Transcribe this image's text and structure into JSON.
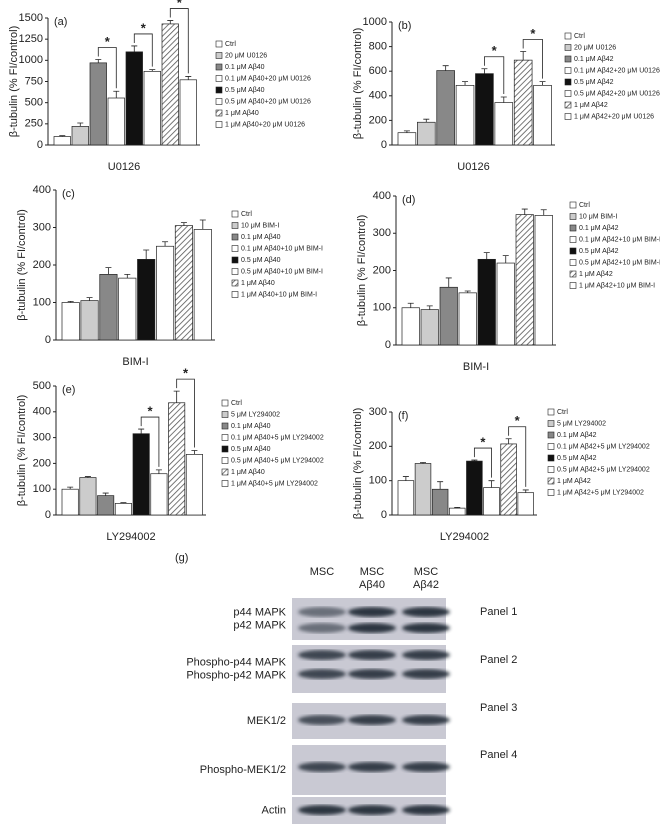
{
  "chart_data": [
    {
      "type": "bar",
      "label": "(a)",
      "ylabel": "β-tubulin (% FI/control)",
      "categories": [
        "U0126"
      ],
      "ylim": [
        0,
        1500
      ],
      "yticks": [
        0,
        250,
        500,
        750,
        1000,
        1250,
        1500
      ],
      "series": [
        {
          "name": "Ctrl",
          "color": "#ffffff",
          "values": [
            100
          ],
          "errors": [
            10
          ]
        },
        {
          "name": "20 μM U0126",
          "color": "#cccccc",
          "values": [
            220
          ],
          "errors": [
            40
          ]
        },
        {
          "name": "0.1 μM Aβ40",
          "color": "#888888",
          "values": [
            970
          ],
          "errors": [
            40
          ]
        },
        {
          "name": "0.1 μM Aβ40+20 μM U0126",
          "color": "#ffffff",
          "values": [
            555
          ],
          "errors": [
            80
          ]
        },
        {
          "name": "0.5 μM Aβ40",
          "color": "#111111",
          "values": [
            1100
          ],
          "errors": [
            70
          ]
        },
        {
          "name": "0.5 μM Aβ40+20 μM U0126",
          "color": "#ffffff",
          "values": [
            870
          ],
          "errors": [
            20
          ]
        },
        {
          "name": "1 μM Aβ40",
          "color": "#ffffff",
          "pattern": "hatch",
          "values": [
            1430
          ],
          "errors": [
            40
          ]
        },
        {
          "name": "1 μM Aβ40+20 μM U0126",
          "color": "#ffffff",
          "values": [
            770
          ],
          "errors": [
            40
          ]
        }
      ],
      "significance": [
        {
          "label": "*",
          "pair": [
            2,
            3
          ]
        },
        {
          "label": "*",
          "pair": [
            4,
            5
          ]
        },
        {
          "label": "*",
          "pair": [
            6,
            7
          ]
        }
      ]
    },
    {
      "type": "bar",
      "label": "(b)",
      "ylabel": "β-tubulin (% FI/control)",
      "categories": [
        "U0126"
      ],
      "ylim": [
        0,
        1000
      ],
      "yticks": [
        0,
        200,
        400,
        600,
        800,
        1000
      ],
      "series": [
        {
          "name": "Ctrl",
          "color": "#ffffff",
          "values": [
            100
          ],
          "errors": [
            15
          ]
        },
        {
          "name": "20 μM U0126",
          "color": "#cccccc",
          "values": [
            185
          ],
          "errors": [
            25
          ]
        },
        {
          "name": "0.1 μM Aβ42",
          "color": "#888888",
          "values": [
            605
          ],
          "errors": [
            40
          ]
        },
        {
          "name": "0.1 μM Aβ42+20 μM U0126",
          "color": "#ffffff",
          "values": [
            485
          ],
          "errors": [
            30
          ]
        },
        {
          "name": "0.5 μM Aβ42",
          "color": "#111111",
          "values": [
            580
          ],
          "errors": [
            40
          ]
        },
        {
          "name": "0.5 μM Aβ42+20 μM U0126",
          "color": "#ffffff",
          "values": [
            345
          ],
          "errors": [
            45
          ]
        },
        {
          "name": "1 μM Aβ42",
          "color": "#ffffff",
          "pattern": "hatch",
          "values": [
            690
          ],
          "errors": [
            70
          ]
        },
        {
          "name": "1 μM Aβ42+20 μM U0126",
          "color": "#ffffff",
          "values": [
            485
          ],
          "errors": [
            30
          ]
        }
      ],
      "significance": [
        {
          "label": "*",
          "pair": [
            4,
            5
          ]
        },
        {
          "label": "*",
          "pair": [
            6,
            7
          ]
        }
      ]
    },
    {
      "type": "bar",
      "label": "(c)",
      "ylabel": "β-tubulin (% FI/control)",
      "categories": [
        "BIM-I"
      ],
      "ylim": [
        0,
        400
      ],
      "yticks": [
        0,
        100,
        200,
        300,
        400
      ],
      "series": [
        {
          "name": "Ctrl",
          "color": "#ffffff",
          "values": [
            100
          ],
          "errors": [
            3
          ]
        },
        {
          "name": "10 μM BIM-I",
          "color": "#cccccc",
          "values": [
            105
          ],
          "errors": [
            8
          ]
        },
        {
          "name": "0.1 μM Aβ40",
          "color": "#888888",
          "values": [
            175
          ],
          "errors": [
            18
          ]
        },
        {
          "name": "0.1 μM Aβ40+10 μM BIM-I",
          "color": "#ffffff",
          "values": [
            165
          ],
          "errors": [
            10
          ]
        },
        {
          "name": "0.5 μM Aβ40",
          "color": "#111111",
          "values": [
            215
          ],
          "errors": [
            25
          ]
        },
        {
          "name": "0.5 μM Aβ40+10 μM BIM-I",
          "color": "#ffffff",
          "values": [
            250
          ],
          "errors": [
            12
          ]
        },
        {
          "name": "1 μM Aβ40",
          "color": "#ffffff",
          "pattern": "hatch",
          "values": [
            305
          ],
          "errors": [
            8
          ]
        },
        {
          "name": "1 μM Aβ40+10 μM BIM-I",
          "color": "#ffffff",
          "values": [
            295
          ],
          "errors": [
            25
          ]
        }
      ]
    },
    {
      "type": "bar",
      "label": "(d)",
      "ylabel": "β-tubulin (% FI/control)",
      "categories": [
        "BIM-I"
      ],
      "ylim": [
        0,
        400
      ],
      "yticks": [
        0,
        100,
        200,
        300,
        400
      ],
      "series": [
        {
          "name": "Ctrl",
          "color": "#ffffff",
          "values": [
            100
          ],
          "errors": [
            12
          ]
        },
        {
          "name": "10 μM BIM-I",
          "color": "#cccccc",
          "values": [
            95
          ],
          "errors": [
            10
          ]
        },
        {
          "name": "0.1 μM Aβ42",
          "color": "#888888",
          "values": [
            155
          ],
          "errors": [
            25
          ]
        },
        {
          "name": "0.1 μM Aβ42+10 μM BIM-I",
          "color": "#ffffff",
          "values": [
            140
          ],
          "errors": [
            5
          ]
        },
        {
          "name": "0.5 μM Aβ42",
          "color": "#111111",
          "values": [
            230
          ],
          "errors": [
            18
          ]
        },
        {
          "name": "0.5 μM Aβ42+10 μM BIM-I",
          "color": "#ffffff",
          "values": [
            220
          ],
          "errors": [
            20
          ]
        },
        {
          "name": "1 μM Aβ42",
          "color": "#ffffff",
          "pattern": "hatch",
          "values": [
            350
          ],
          "errors": [
            15
          ]
        },
        {
          "name": "1 μM Aβ42+10 μM BIM-I",
          "color": "#ffffff",
          "values": [
            348
          ],
          "errors": [
            15
          ]
        }
      ]
    },
    {
      "type": "bar",
      "label": "(e)",
      "ylabel": "β-tubulin (% FI/control)",
      "categories": [
        "LY294002"
      ],
      "ylim": [
        0,
        500
      ],
      "yticks": [
        0,
        100,
        200,
        300,
        400,
        500
      ],
      "series": [
        {
          "name": "Ctrl",
          "color": "#ffffff",
          "values": [
            100
          ],
          "errors": [
            8
          ]
        },
        {
          "name": "5 μM LY294002",
          "color": "#cccccc",
          "values": [
            145
          ],
          "errors": [
            4
          ]
        },
        {
          "name": "0.1 μM Aβ40",
          "color": "#888888",
          "values": [
            75
          ],
          "errors": [
            10
          ]
        },
        {
          "name": "0.1 μM Aβ40+5 μM LY294002",
          "color": "#ffffff",
          "values": [
            45
          ],
          "errors": [
            3
          ]
        },
        {
          "name": "0.5 μM Aβ40",
          "color": "#111111",
          "values": [
            315
          ],
          "errors": [
            18
          ]
        },
        {
          "name": "0.5 μM Aβ40+5 μM LY294002",
          "color": "#ffffff",
          "values": [
            160
          ],
          "errors": [
            15
          ]
        },
        {
          "name": "1 μM Aβ40",
          "color": "#ffffff",
          "pattern": "hatch",
          "values": [
            435
          ],
          "errors": [
            45
          ]
        },
        {
          "name": "1 μM Aβ40+5 μM LY294002",
          "color": "#ffffff",
          "values": [
            235
          ],
          "errors": [
            15
          ]
        }
      ],
      "significance": [
        {
          "label": "*",
          "pair": [
            4,
            5
          ]
        },
        {
          "label": "*",
          "pair": [
            6,
            7
          ]
        }
      ]
    },
    {
      "type": "bar",
      "label": "(f)",
      "ylabel": "β-tubulin (% FI/control)",
      "categories": [
        "LY294002"
      ],
      "ylim": [
        0,
        300
      ],
      "yticks": [
        0,
        100,
        200,
        300
      ],
      "series": [
        {
          "name": "Ctrl",
          "color": "#ffffff",
          "values": [
            100
          ],
          "errors": [
            12
          ]
        },
        {
          "name": "5 μM LY294002",
          "color": "#cccccc",
          "values": [
            150
          ],
          "errors": [
            3
          ]
        },
        {
          "name": "0.1 μM Aβ42",
          "color": "#888888",
          "values": [
            75
          ],
          "errors": [
            22
          ]
        },
        {
          "name": "0.1 μM Aβ42+5 μM LY294002",
          "color": "#ffffff",
          "values": [
            20
          ],
          "errors": [
            2
          ]
        },
        {
          "name": "0.5 μM Aβ42",
          "color": "#111111",
          "values": [
            157
          ],
          "errors": [
            3
          ]
        },
        {
          "name": "0.5 μM Aβ42+5 μM LY294002",
          "color": "#ffffff",
          "values": [
            80
          ],
          "errors": [
            20
          ]
        },
        {
          "name": "1 μM Aβ42",
          "color": "#ffffff",
          "pattern": "hatch",
          "values": [
            207
          ],
          "errors": [
            15
          ]
        },
        {
          "name": "1 μM Aβ42+5 μM LY294002",
          "color": "#ffffff",
          "values": [
            65
          ],
          "errors": [
            8
          ]
        }
      ],
      "significance": [
        {
          "label": "*",
          "pair": [
            4,
            5
          ]
        },
        {
          "label": "*",
          "pair": [
            6,
            7
          ]
        }
      ]
    }
  ],
  "blot": {
    "label": "(g)",
    "columns": [
      {
        "lines": [
          "MSC"
        ]
      },
      {
        "lines": [
          "MSC",
          "Aβ40"
        ]
      },
      {
        "lines": [
          "MSC",
          "Aβ42"
        ]
      }
    ],
    "rows": [
      {
        "labels": [
          "p44 MAPK",
          "p42 MAPK"
        ],
        "panel": "Panel 1"
      },
      {
        "labels": [
          "Phospho-p44 MAPK",
          "Phospho-p42 MAPK"
        ],
        "panel": "Panel 2"
      },
      {
        "labels": [
          "MEK1/2"
        ],
        "panel": "Panel 3"
      },
      {
        "labels": [
          "Phospho-MEK1/2"
        ],
        "panel": "Panel 4"
      },
      {
        "labels": [
          "Actin"
        ]
      }
    ]
  }
}
